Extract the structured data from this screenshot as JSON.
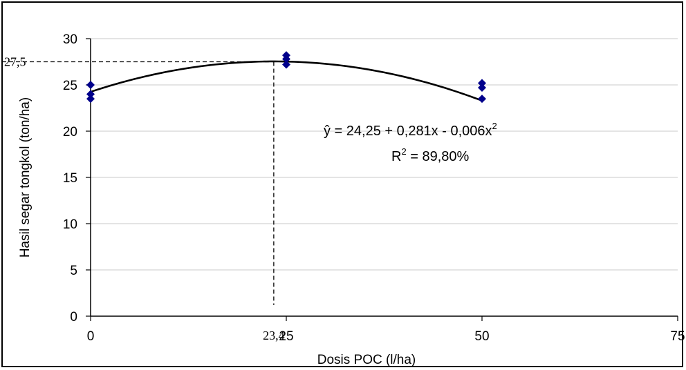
{
  "chart_data": {
    "type": "scatter",
    "xlabel": "Dosis POC (l/ha)",
    "ylabel": "Hasil segar tongkol (ton/ha)",
    "xlim": [
      0,
      75
    ],
    "ylim": [
      0,
      30
    ],
    "xticks": [
      "0",
      "25",
      "50",
      "75"
    ],
    "yticks": [
      "0",
      "5",
      "10",
      "15",
      "20",
      "25",
      "30"
    ],
    "grid": "horizontal",
    "points": [
      {
        "x": 0,
        "y": 25.0
      },
      {
        "x": 0,
        "y": 24.0
      },
      {
        "x": 0,
        "y": 23.5
      },
      {
        "x": 25,
        "y": 28.2
      },
      {
        "x": 25,
        "y": 27.8
      },
      {
        "x": 25,
        "y": 27.2
      },
      {
        "x": 50,
        "y": 25.2
      },
      {
        "x": 50,
        "y": 24.7
      },
      {
        "x": 50,
        "y": 23.5
      }
    ],
    "fit": {
      "type": "quadratic",
      "coefficients": [
        24.25,
        0.281,
        -0.006
      ],
      "equation_prefix": "ŷ = 24,25 + 0,281x  - 0,006x",
      "equation_sup": "2",
      "r2_prefix": "R",
      "r2_sup": "2",
      "r2_suffix": " = 89,80%"
    },
    "optimum": {
      "x": 23.4,
      "y": 27.5,
      "x_label": "23,4",
      "y_label": "27,5"
    },
    "colors": {
      "marker": "#00008B",
      "curve": "#000000",
      "grid": "#c8c8c8",
      "axis": "#000000"
    }
  }
}
